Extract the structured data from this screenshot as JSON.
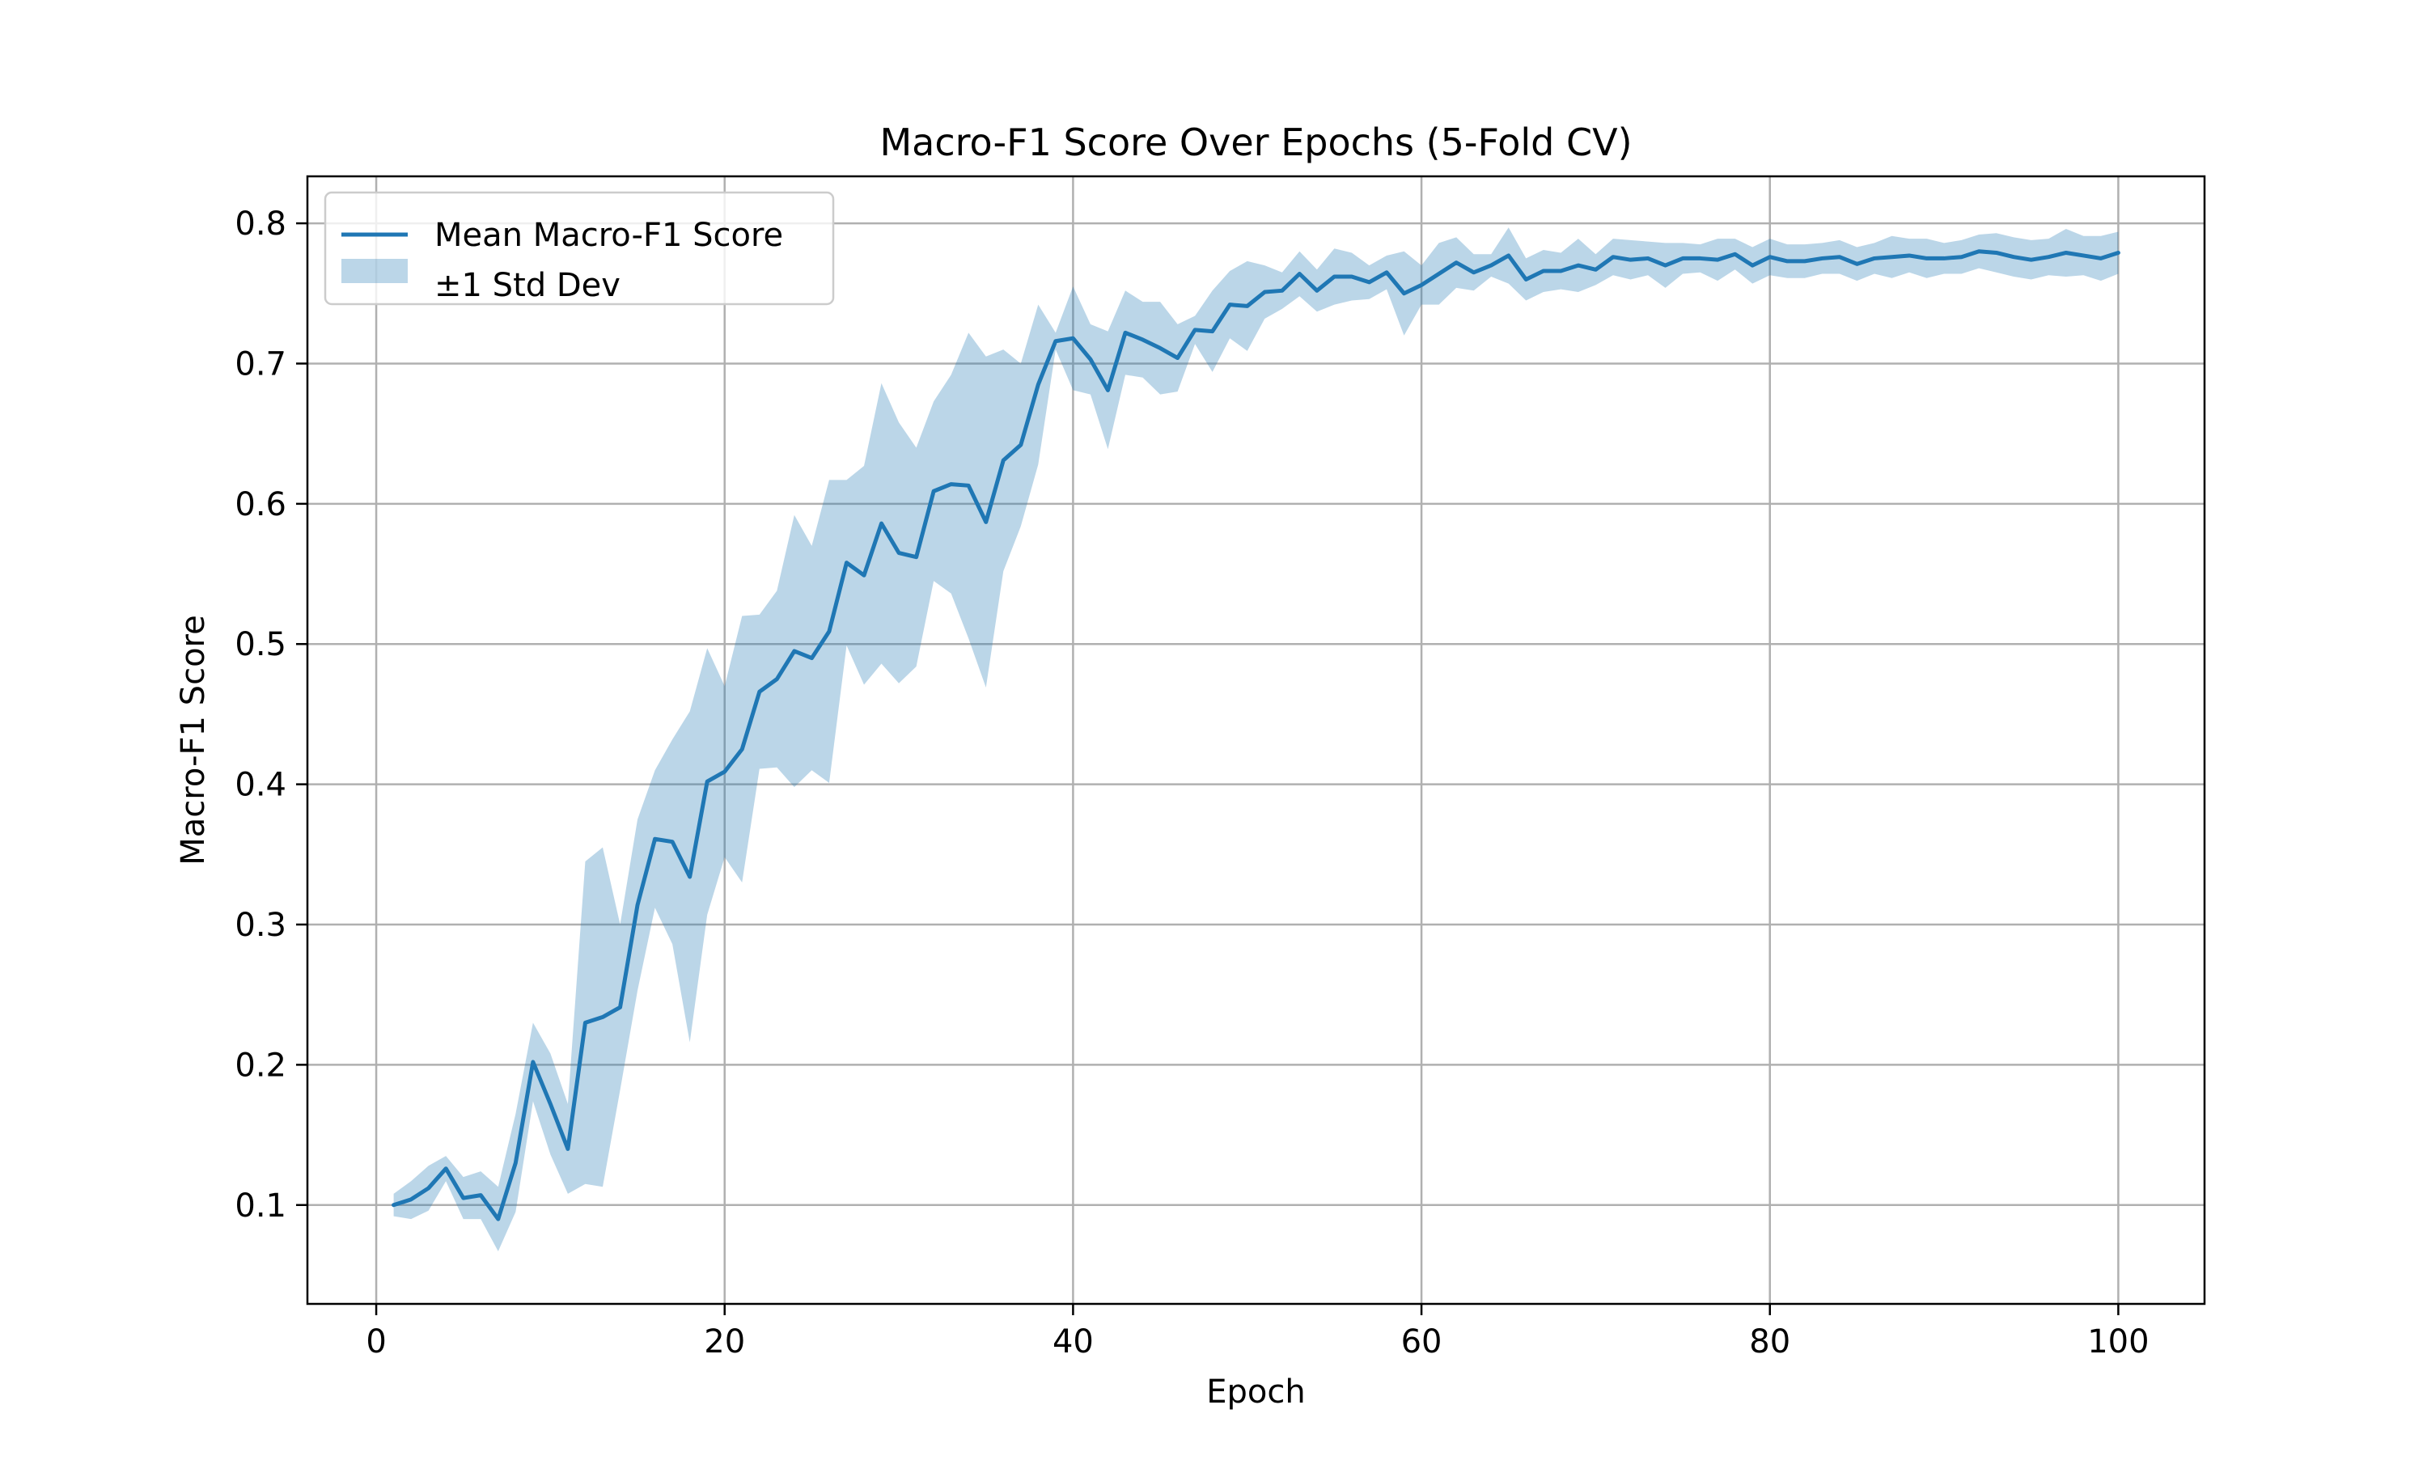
{
  "chart_data": {
    "type": "line",
    "title": "Macro-F1 Score Over Epochs (5-Fold CV)",
    "xlabel": "Epoch",
    "ylabel": "Macro-F1 Score",
    "xlim": [
      -3.95,
      104.95
    ],
    "ylim": [
      0.0295,
      0.8335
    ],
    "xticks": [
      0,
      20,
      40,
      60,
      80,
      100
    ],
    "yticks": [
      0.1,
      0.2,
      0.3,
      0.4,
      0.5,
      0.6,
      0.7,
      0.8
    ],
    "grid": true,
    "legend_position": "upper-left",
    "colors": {
      "line": "#1f77b4",
      "band": "#1f77b4"
    },
    "band_opacity": 0.3,
    "legend": [
      {
        "label": "Mean Macro-F1 Score",
        "kind": "line"
      },
      {
        "label": "±1 Std Dev",
        "kind": "band"
      }
    ],
    "series": [
      {
        "name": "Mean Macro-F1 Score",
        "x": [
          1,
          2,
          3,
          4,
          5,
          6,
          7,
          8,
          9,
          10,
          11,
          12,
          13,
          14,
          15,
          16,
          17,
          18,
          19,
          20,
          21,
          22,
          23,
          24,
          25,
          26,
          27,
          28,
          29,
          30,
          31,
          32,
          33,
          34,
          35,
          36,
          37,
          38,
          39,
          40,
          41,
          42,
          43,
          44,
          45,
          46,
          47,
          48,
          49,
          50,
          51,
          52,
          53,
          54,
          55,
          56,
          57,
          58,
          59,
          60,
          61,
          62,
          63,
          64,
          65,
          66,
          67,
          68,
          69,
          70,
          71,
          72,
          73,
          74,
          75,
          76,
          77,
          78,
          79,
          80,
          81,
          82,
          83,
          84,
          85,
          86,
          87,
          88,
          89,
          90,
          91,
          92,
          93,
          94,
          95,
          96,
          97,
          98,
          99,
          100
        ],
        "y": [
          0.1,
          0.104,
          0.112,
          0.126,
          0.105,
          0.107,
          0.09,
          0.13,
          0.202,
          0.172,
          0.14,
          0.23,
          0.234,
          0.241,
          0.314,
          0.361,
          0.359,
          0.334,
          0.402,
          0.409,
          0.425,
          0.466,
          0.475,
          0.495,
          0.49,
          0.509,
          0.558,
          0.549,
          0.586,
          0.565,
          0.562,
          0.609,
          0.614,
          0.613,
          0.587,
          0.631,
          0.642,
          0.685,
          0.716,
          0.718,
          0.703,
          0.681,
          0.722,
          0.717,
          0.711,
          0.704,
          0.724,
          0.723,
          0.742,
          0.741,
          0.751,
          0.752,
          0.764,
          0.752,
          0.762,
          0.762,
          0.758,
          0.765,
          0.75,
          0.756,
          0.764,
          0.772,
          0.765,
          0.77,
          0.777,
          0.76,
          0.766,
          0.766,
          0.77,
          0.767,
          0.776,
          0.774,
          0.775,
          0.77,
          0.775,
          0.775,
          0.774,
          0.778,
          0.77,
          0.776,
          0.773,
          0.773,
          0.775,
          0.776,
          0.771,
          0.775,
          0.776,
          0.777,
          0.775,
          0.775,
          0.776,
          0.78,
          0.779,
          0.776,
          0.774,
          0.776,
          0.779,
          0.777,
          0.775,
          0.779
        ]
      },
      {
        "name": "±1 Std Dev",
        "x": [
          1,
          2,
          3,
          4,
          5,
          6,
          7,
          8,
          9,
          10,
          11,
          12,
          13,
          14,
          15,
          16,
          17,
          18,
          19,
          20,
          21,
          22,
          23,
          24,
          25,
          26,
          27,
          28,
          29,
          30,
          31,
          32,
          33,
          34,
          35,
          36,
          37,
          38,
          39,
          40,
          41,
          42,
          43,
          44,
          45,
          46,
          47,
          48,
          49,
          50,
          51,
          52,
          53,
          54,
          55,
          56,
          57,
          58,
          59,
          60,
          61,
          62,
          63,
          64,
          65,
          66,
          67,
          68,
          69,
          70,
          71,
          72,
          73,
          74,
          75,
          76,
          77,
          78,
          79,
          80,
          81,
          82,
          83,
          84,
          85,
          86,
          87,
          88,
          89,
          90,
          91,
          92,
          93,
          94,
          95,
          96,
          97,
          98,
          99,
          100
        ],
        "upper": [
          0.108,
          0.117,
          0.128,
          0.135,
          0.12,
          0.124,
          0.113,
          0.165,
          0.23,
          0.208,
          0.172,
          0.345,
          0.355,
          0.3,
          0.375,
          0.41,
          0.432,
          0.452,
          0.497,
          0.47,
          0.52,
          0.521,
          0.538,
          0.592,
          0.57,
          0.617,
          0.617,
          0.627,
          0.686,
          0.658,
          0.64,
          0.673,
          0.692,
          0.722,
          0.705,
          0.71,
          0.7,
          0.742,
          0.722,
          0.755,
          0.728,
          0.723,
          0.752,
          0.744,
          0.744,
          0.728,
          0.734,
          0.752,
          0.766,
          0.773,
          0.77,
          0.765,
          0.78,
          0.767,
          0.782,
          0.779,
          0.77,
          0.777,
          0.78,
          0.77,
          0.786,
          0.79,
          0.778,
          0.778,
          0.797,
          0.775,
          0.781,
          0.779,
          0.789,
          0.778,
          0.789,
          0.788,
          0.787,
          0.786,
          0.786,
          0.785,
          0.789,
          0.789,
          0.783,
          0.789,
          0.785,
          0.785,
          0.786,
          0.788,
          0.783,
          0.786,
          0.791,
          0.789,
          0.789,
          0.786,
          0.788,
          0.792,
          0.793,
          0.79,
          0.788,
          0.789,
          0.796,
          0.791,
          0.791,
          0.794
        ],
        "lower": [
          0.092,
          0.09,
          0.096,
          0.117,
          0.09,
          0.09,
          0.067,
          0.095,
          0.174,
          0.136,
          0.108,
          0.115,
          0.113,
          0.182,
          0.253,
          0.312,
          0.286,
          0.216,
          0.307,
          0.348,
          0.33,
          0.411,
          0.412,
          0.398,
          0.41,
          0.401,
          0.499,
          0.471,
          0.486,
          0.472,
          0.484,
          0.545,
          0.536,
          0.504,
          0.469,
          0.552,
          0.584,
          0.628,
          0.71,
          0.681,
          0.678,
          0.639,
          0.692,
          0.69,
          0.678,
          0.68,
          0.714,
          0.694,
          0.718,
          0.709,
          0.732,
          0.739,
          0.748,
          0.737,
          0.742,
          0.745,
          0.746,
          0.753,
          0.72,
          0.742,
          0.742,
          0.754,
          0.752,
          0.762,
          0.757,
          0.745,
          0.751,
          0.753,
          0.751,
          0.756,
          0.763,
          0.76,
          0.763,
          0.754,
          0.764,
          0.765,
          0.759,
          0.767,
          0.757,
          0.763,
          0.761,
          0.761,
          0.764,
          0.764,
          0.759,
          0.764,
          0.761,
          0.765,
          0.761,
          0.764,
          0.764,
          0.768,
          0.765,
          0.762,
          0.76,
          0.763,
          0.762,
          0.763,
          0.759,
          0.764
        ]
      }
    ]
  }
}
